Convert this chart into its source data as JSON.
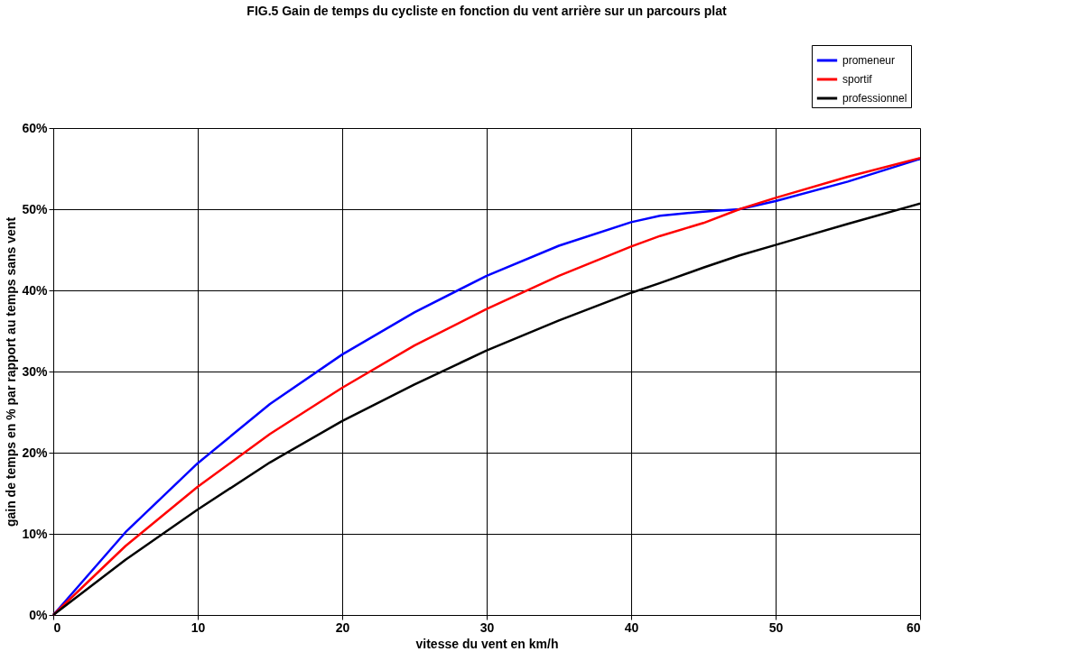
{
  "chart_data": {
    "type": "line",
    "title": "FIG.5  Gain de temps du cycliste en fonction du vent arrière sur un parcours plat",
    "xlabel": "vitesse du vent en km/h",
    "ylabel": "gain de temps en % par rapport au temps sans vent",
    "x": [
      0,
      5,
      10,
      15,
      20,
      25,
      30,
      35,
      40,
      42,
      45,
      47.5,
      50,
      55,
      60
    ],
    "series": [
      {
        "name": "promeneur",
        "color": "#0000ff",
        "values": [
          0,
          10.2,
          18.7,
          26,
          32.1,
          37.3,
          41.8,
          45.5,
          48.4,
          49.2,
          49.7,
          50,
          51,
          53.4,
          56.2
        ]
      },
      {
        "name": "sportif",
        "color": "#ff0000",
        "values": [
          0,
          8.5,
          15.8,
          22.3,
          28,
          33.2,
          37.7,
          41.8,
          45.4,
          46.7,
          48.3,
          50,
          51.4,
          54,
          56.3
        ]
      },
      {
        "name": "professionnel",
        "color": "#000000",
        "values": [
          0,
          6.8,
          13,
          18.8,
          23.9,
          28.4,
          32.6,
          36.3,
          39.7,
          40.9,
          42.8,
          44.3,
          45.6,
          48.2,
          50.7
        ]
      }
    ],
    "xlim": [
      0,
      60
    ],
    "xticks": [
      0,
      10,
      20,
      30,
      40,
      50,
      60
    ],
    "ylim": [
      0,
      60
    ],
    "yticks": [
      {
        "value": 0,
        "label": "0%"
      },
      {
        "value": 10,
        "label": "10%"
      },
      {
        "value": 20,
        "label": "20%"
      },
      {
        "value": 30,
        "label": "30%"
      },
      {
        "value": 40,
        "label": "40%"
      },
      {
        "value": 50,
        "label": "50%"
      },
      {
        "value": 60,
        "label": "60%"
      }
    ],
    "grid": true,
    "legend": "top right",
    "marker": "none",
    "line_style": "solid"
  }
}
